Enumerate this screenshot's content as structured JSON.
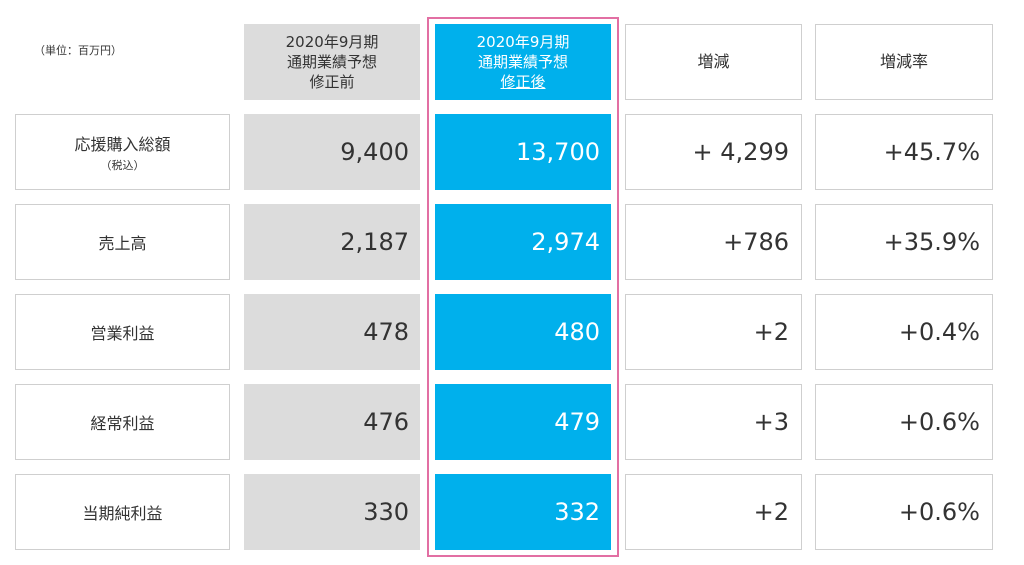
{
  "unit_note": "（単位：百万円）",
  "headers": {
    "before": {
      "line1": "2020年9月期",
      "line2": "通期業績予想",
      "line3": "修正前"
    },
    "after": {
      "line1": "2020年9月期",
      "line2": "通期業績予想",
      "line3": "修正後"
    },
    "diff": "増減",
    "rate": "増減率"
  },
  "rows": [
    {
      "label": "応援購入総額",
      "sublabel": "（税込）",
      "before": "9,400",
      "after": "13,700",
      "diff": "+ 4,299",
      "rate": "+45.7%"
    },
    {
      "label": "売上高",
      "before": "2,187",
      "after": "2,974",
      "diff": "+786",
      "rate": "+35.9%"
    },
    {
      "label": "営業利益",
      "before": "478",
      "after": "480",
      "diff": "+2",
      "rate": "+0.4%"
    },
    {
      "label": "経常利益",
      "before": "476",
      "after": "479",
      "diff": "+3",
      "rate": "+0.6%"
    },
    {
      "label": "当期純利益",
      "before": "330",
      "after": "332",
      "diff": "+2",
      "rate": "+0.6%"
    }
  ],
  "colors": {
    "before_bg": "#dcdcdc",
    "after_bg": "#00b0ec",
    "highlight_border": "#e26fa3",
    "cell_border": "#cfcfcf"
  }
}
